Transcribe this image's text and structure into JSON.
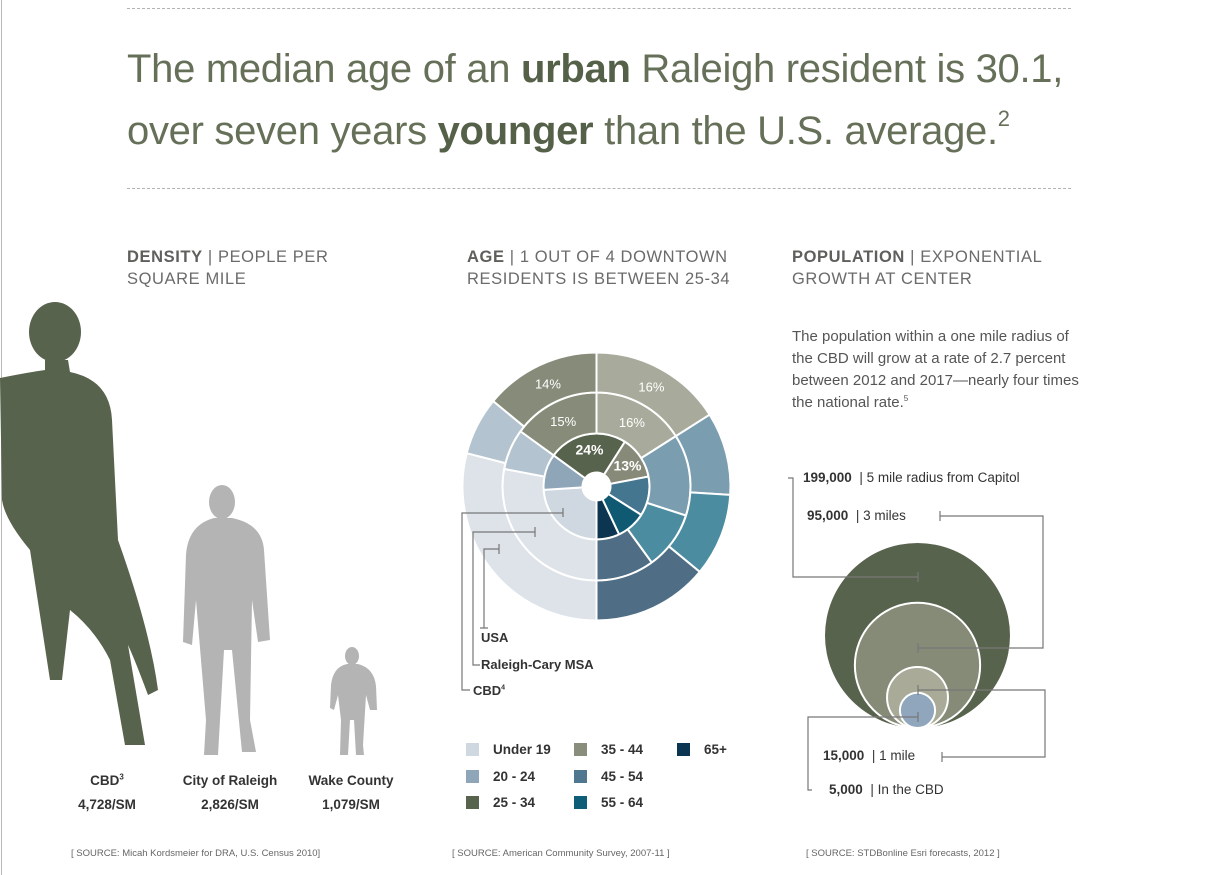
{
  "headline": {
    "part1": "The median age of an ",
    "bold1": "urban",
    "part2": " Raleigh resident is 30.1,",
    "part3": "over seven years ",
    "bold2": "younger",
    "part4": " than the U.S. average.",
    "footnote": "2"
  },
  "density": {
    "title": "DENSITY",
    "subtitle": "| PEOPLE PER SQUARE MILE",
    "items": [
      {
        "label": "CBD",
        "footnote": "3",
        "value": "4,728/SM",
        "color": "#58634d"
      },
      {
        "label": "City of Raleigh",
        "footnote": "",
        "value": "2,826/SM",
        "color": "#b4b4b4"
      },
      {
        "label": "Wake County",
        "footnote": "",
        "value": "1,079/SM",
        "color": "#b4b4b4"
      }
    ],
    "source": "[ SOURCE: Micah Kordsmeier for DRA, U.S. Census 2010]"
  },
  "age": {
    "title": "AGE",
    "subtitle": "| 1 OUT OF 4 DOWNTOWN RESIDENTS IS BETWEEN 25-34",
    "ring_labels": {
      "usa": "USA",
      "msa": "Raleigh-Cary MSA",
      "cbd": "CBD",
      "cbd_footnote": "4"
    },
    "legend": [
      {
        "label": "Under 19",
        "color": "#cfd8e0"
      },
      {
        "label": "20 - 24",
        "color": "#8fa5b8"
      },
      {
        "label": "25 - 34",
        "color": "#58634d"
      },
      {
        "label": "35 - 44",
        "color": "#888d7c"
      },
      {
        "label": "45 - 54",
        "color": "#4f7890"
      },
      {
        "label": "55 - 64",
        "color": "#0f5e78"
      },
      {
        "label": "65+",
        "color": "#0b3550"
      }
    ],
    "source": "[ SOURCE: American Community Survey, 2007-11 ]"
  },
  "population": {
    "title": "POPULATION",
    "subtitle": "| EXPONENTIAL GROWTH AT CENTER",
    "paragraph": "The population within a one mile radius of the CBD will grow at a rate of 2.7 percent between 2012 and 2017—nearly four times the national rate.",
    "paragraph_footnote": "5",
    "items": [
      {
        "value": "199,000",
        "label": "| 5 mile radius from Capitol",
        "color": "#58634d"
      },
      {
        "value": "95,000",
        "label": "| 3 miles",
        "color": "#868b78"
      },
      {
        "value": "15,000",
        "label": "| 1 mile",
        "color": "#a9ab98"
      },
      {
        "value": "5,000",
        "label": "| In the CBD",
        "color": "#8fa6bc"
      }
    ],
    "source": "[ SOURCE: STDBonline Esri forecasts, 2012 ]"
  },
  "chart_data": [
    {
      "type": "pie",
      "subtype": "nested-donut",
      "categories": [
        "Under 19",
        "20 - 24",
        "25 - 34",
        "35 - 44",
        "45 - 54",
        "55 - 64",
        "65+"
      ],
      "series": [
        {
          "name": "CBD",
          "values": [
            24,
            11,
            24,
            13,
            12,
            9,
            7
          ],
          "colors": [
            "#cfd8e0",
            "#8fa5b8",
            "#58634d",
            "#878a78",
            "#44768f",
            "#0f5a72",
            "#0b3550"
          ],
          "data_labels": [
            "",
            "",
            "24%",
            "13%",
            "",
            "",
            ""
          ]
        },
        {
          "name": "Raleigh-Cary MSA",
          "values": [
            28,
            7,
            15,
            16,
            14,
            10,
            10
          ],
          "colors": [
            "#dde3e8",
            "#b3c3cf",
            "#878c7a",
            "#a8ab9b",
            "#7b9db0",
            "#4b8ca0",
            "#4f6e85"
          ],
          "data_labels": [
            "",
            "",
            "15%",
            "16%",
            "",
            "",
            ""
          ]
        },
        {
          "name": "USA",
          "values": [
            29,
            7,
            14,
            16,
            10,
            10,
            14
          ],
          "colors": [
            "#dde3e8",
            "#b3c3cf",
            "#878c7a",
            "#a8ab9b",
            "#7b9db0",
            "#4b8ca0",
            "#4f6e85"
          ],
          "data_labels": [
            "",
            "",
            "14%",
            "16%",
            "",
            "",
            ""
          ]
        }
      ]
    },
    {
      "type": "bubble",
      "categories": [
        "5 mile radius from Capitol",
        "3 miles",
        "1 mile",
        "In the CBD"
      ],
      "values": [
        199000,
        95000,
        15000,
        5000
      ]
    }
  ]
}
